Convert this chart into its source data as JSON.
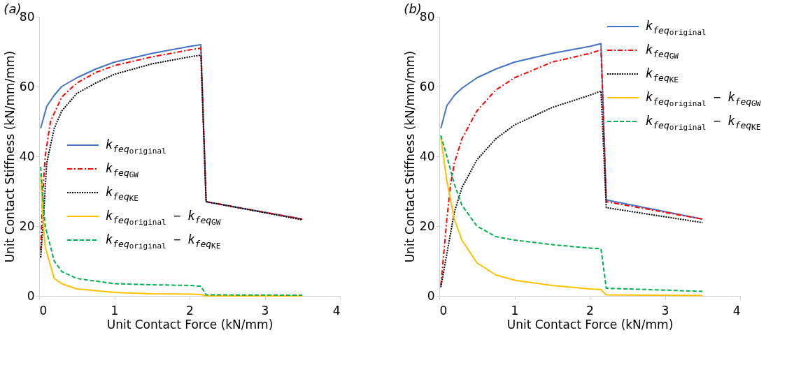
{
  "chart_data": [
    {
      "type": "line",
      "title": "(a)",
      "xlabel": "Unit Contact Force (kN/mm)",
      "ylabel": "Unit Contact Stiffness (kN/mm/mm)",
      "xlim": [
        0,
        4
      ],
      "ylim": [
        0,
        80
      ],
      "xticks": [
        0,
        1,
        2,
        3,
        4
      ],
      "yticks": [
        0,
        20,
        40,
        60,
        80
      ],
      "grid": false,
      "legend": "left",
      "marker": "none",
      "series": [
        {
          "name": "k$_{feq}$$_{original}$",
          "color": "#4472c4",
          "line_style": "solid",
          "x": [
            0.02,
            0.1,
            0.2,
            0.3,
            0.5,
            0.75,
            1,
            1.5,
            2,
            2.15,
            2.22,
            3.5
          ],
          "values": [
            48,
            54.3,
            57.5,
            60,
            62.5,
            65,
            67,
            69.5,
            71.5,
            72,
            27,
            22
          ]
        },
        {
          "name": "k$_{feq}$$_{GW}$",
          "color": "#ff0000",
          "line_style": "dashdot",
          "x": [
            0.02,
            0.05,
            0.08,
            0.15,
            0.3,
            0.5,
            0.75,
            1,
            1.5,
            2,
            2.15,
            2.22,
            3.5
          ],
          "values": [
            13,
            30,
            40,
            50,
            57,
            61,
            64,
            66,
            68.5,
            70.5,
            71,
            27,
            22
          ]
        },
        {
          "name": "k$_{feq}$$_{KE}$",
          "color": "#000000",
          "line_style": "dotted",
          "x": [
            0.02,
            0.05,
            0.1,
            0.2,
            0.3,
            0.5,
            0.75,
            1,
            1.5,
            2,
            2.15,
            2.22,
            3.5
          ],
          "values": [
            11,
            20,
            38,
            48,
            53,
            58,
            61,
            63.5,
            66.5,
            68.5,
            69,
            27,
            21.8
          ]
        },
        {
          "name": "k$_{feq}$$_{original}$ − k$_{feq}$$_{GW}$",
          "color": "#ffc000",
          "line_style": "solid",
          "x": [
            0.02,
            0.05,
            0.08,
            0.2,
            0.3,
            0.5,
            1,
            1.5,
            2,
            2.15,
            2.22,
            3.5
          ],
          "values": [
            35,
            22,
            14,
            5,
            3.5,
            2,
            1,
            0.6,
            0.5,
            0.4,
            0,
            0
          ]
        },
        {
          "name": "k$_{feq}$$_{original}$ − k$_{feq}$$_{KE}$",
          "color": "#00b050",
          "line_style": "dashed",
          "x": [
            0.02,
            0.05,
            0.08,
            0.2,
            0.3,
            0.5,
            1,
            1.5,
            2,
            2.15,
            2.22,
            3.5
          ],
          "values": [
            37,
            28,
            20,
            10,
            7,
            5,
            3.5,
            3.2,
            3,
            2.8,
            0.3,
            0.2
          ]
        }
      ]
    },
    {
      "type": "line",
      "title": "(b)",
      "xlabel": "Unit Contact Force (kN/mm)",
      "ylabel": "Unit Contact Stiffness (kN/mm/mm)",
      "xlim": [
        0,
        4
      ],
      "ylim": [
        0,
        80
      ],
      "xticks": [
        0,
        1,
        2,
        3,
        4
      ],
      "yticks": [
        0,
        20,
        40,
        60,
        80
      ],
      "grid": false,
      "legend": "top right",
      "marker": "none",
      "series": [
        {
          "name": "k$_{feq}$$_{original}$",
          "color": "#4472c4",
          "line_style": "solid",
          "x": [
            0.02,
            0.1,
            0.2,
            0.3,
            0.5,
            0.75,
            1,
            1.5,
            2,
            2.15,
            2.22,
            3.5
          ],
          "values": [
            48,
            54.5,
            57.5,
            59.5,
            62.5,
            65,
            67,
            69.5,
            71.5,
            72.3,
            27.5,
            22
          ]
        },
        {
          "name": "k$_{feq}$$_{GW}$",
          "color": "#ff0000",
          "line_style": "dashdot",
          "x": [
            0.02,
            0.05,
            0.1,
            0.15,
            0.2,
            0.3,
            0.5,
            0.75,
            1,
            1.5,
            2,
            2.15,
            2.22,
            3.5
          ],
          "values": [
            3,
            10,
            22,
            32,
            38,
            45,
            53,
            59,
            62.5,
            67,
            69.5,
            70.5,
            27,
            22
          ]
        },
        {
          "name": "k$_{feq}$$_{KE}$",
          "color": "#000000",
          "line_style": "dotted",
          "x": [
            0.02,
            0.1,
            0.2,
            0.3,
            0.5,
            0.75,
            1,
            1.5,
            2,
            2.15,
            2.22,
            3.5
          ],
          "values": [
            2.5,
            12,
            24,
            31,
            39,
            45,
            49,
            54,
            57.5,
            58.7,
            25.3,
            21
          ]
        },
        {
          "name": "k$_{feq}$$_{original}$ − k$_{feq}$$_{GW}$",
          "color": "#ffc000",
          "line_style": "solid",
          "x": [
            0.02,
            0.1,
            0.2,
            0.3,
            0.5,
            0.75,
            1,
            1.5,
            2,
            2.15,
            2.22,
            3.5
          ],
          "values": [
            45.5,
            33,
            22,
            16,
            9.5,
            6,
            4.5,
            3,
            2,
            1.8,
            0.3,
            0.1
          ]
        },
        {
          "name": "k$_{feq}$$_{original}$ − k$_{feq}$$_{KE}$",
          "color": "#00b050",
          "line_style": "dashed",
          "x": [
            0.02,
            0.1,
            0.2,
            0.3,
            0.5,
            0.75,
            1,
            1.5,
            2,
            2.15,
            2.22,
            3.5
          ],
          "values": [
            46,
            40,
            32,
            26,
            20,
            17,
            16,
            14.7,
            13.7,
            13.5,
            2.2,
            1.3
          ]
        }
      ]
    }
  ]
}
